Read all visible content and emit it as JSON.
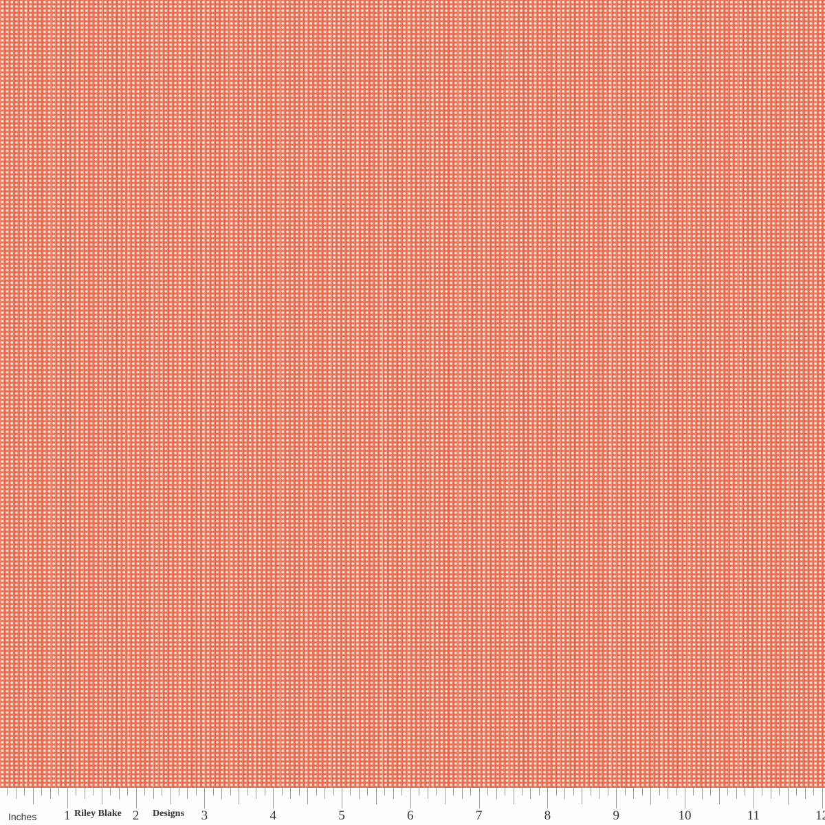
{
  "fabric": {
    "base_color": "#e8694f",
    "dot_color": "#fbe9d9",
    "pattern": "vertical dotted stripes"
  },
  "ruler": {
    "unit_label": "Inches",
    "brand_part1": "Riley Blake",
    "brand_part2": "Designs",
    "numbers": [
      "1",
      "2",
      "3",
      "4",
      "5",
      "6",
      "7",
      "8",
      "9",
      "10",
      "11",
      "12"
    ]
  }
}
